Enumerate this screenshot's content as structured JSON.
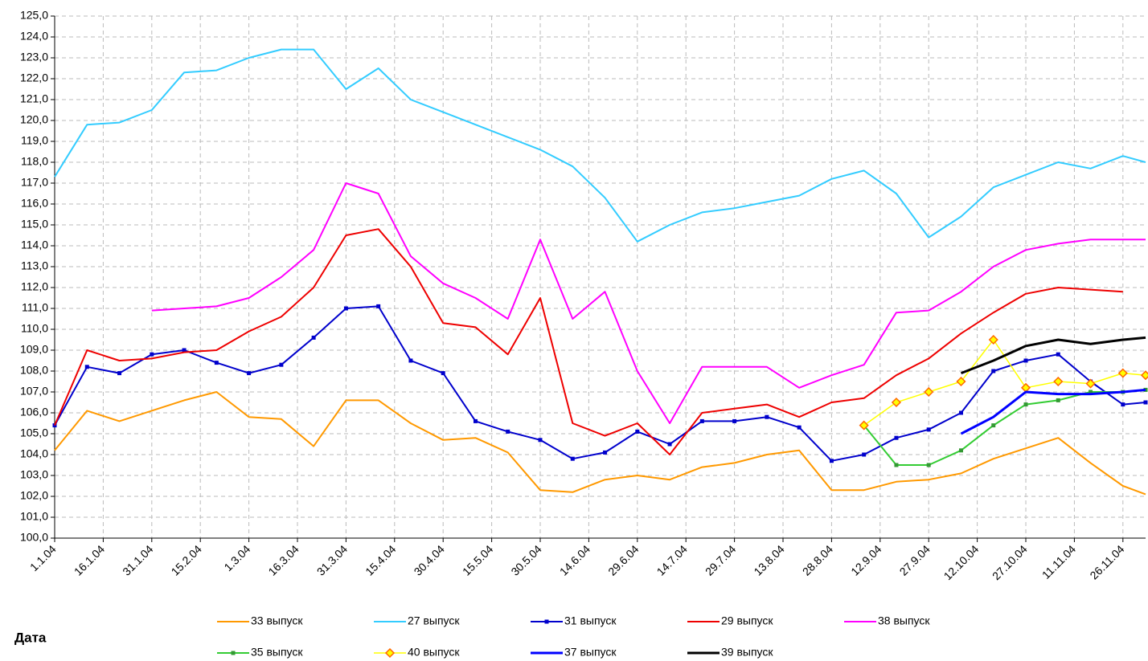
{
  "chart_data": {
    "type": "line",
    "x_label": "Дата",
    "x": [
      "2004-01-01",
      "2004-01-11",
      "2004-01-21",
      "2004-01-31",
      "2004-02-10",
      "2004-02-20",
      "2004-03-01",
      "2004-03-11",
      "2004-03-21",
      "2004-03-31",
      "2004-04-10",
      "2004-04-20",
      "2004-04-30",
      "2004-05-10",
      "2004-05-20",
      "2004-05-30",
      "2004-06-09",
      "2004-06-19",
      "2004-06-29",
      "2004-07-09",
      "2004-07-19",
      "2004-07-29",
      "2004-08-08",
      "2004-08-18",
      "2004-08-28",
      "2004-09-07",
      "2004-09-17",
      "2004-09-27",
      "2004-10-07",
      "2004-10-17",
      "2004-10-27",
      "2004-11-06",
      "2004-11-16",
      "2004-11-26",
      "2004-12-03"
    ],
    "xlim": [
      "2004-01-01",
      "2004-12-03"
    ],
    "xticks": [
      {
        "value": "2004-01-01",
        "label": "1.1.04"
      },
      {
        "value": "2004-01-16",
        "label": "16.1.04"
      },
      {
        "value": "2004-01-31",
        "label": "31.1.04"
      },
      {
        "value": "2004-02-15",
        "label": "15.2.04"
      },
      {
        "value": "2004-03-01",
        "label": "1.3.04"
      },
      {
        "value": "2004-03-16",
        "label": "16.3.04"
      },
      {
        "value": "2004-03-31",
        "label": "31.3.04"
      },
      {
        "value": "2004-04-15",
        "label": "15.4.04"
      },
      {
        "value": "2004-04-30",
        "label": "30.4.04"
      },
      {
        "value": "2004-05-15",
        "label": "15.5.04"
      },
      {
        "value": "2004-05-30",
        "label": "30.5.04"
      },
      {
        "value": "2004-06-14",
        "label": "14.6.04"
      },
      {
        "value": "2004-06-29",
        "label": "29.6.04"
      },
      {
        "value": "2004-07-14",
        "label": "14.7.04"
      },
      {
        "value": "2004-07-29",
        "label": "29.7.04"
      },
      {
        "value": "2004-08-13",
        "label": "13.8.04"
      },
      {
        "value": "2004-08-28",
        "label": "28.8.04"
      },
      {
        "value": "2004-09-12",
        "label": "12.9.04"
      },
      {
        "value": "2004-09-27",
        "label": "27.9.04"
      },
      {
        "value": "2004-10-12",
        "label": "12.10.04"
      },
      {
        "value": "2004-10-27",
        "label": "27.10.04"
      },
      {
        "value": "2004-11-11",
        "label": "11.11.04"
      },
      {
        "value": "2004-11-26",
        "label": "26.11.04"
      }
    ],
    "ylim": [
      100,
      125
    ],
    "yticks": [
      {
        "value": 100,
        "label": "100,0"
      },
      {
        "value": 101,
        "label": "101,0"
      },
      {
        "value": 102,
        "label": "102,0"
      },
      {
        "value": 103,
        "label": "103,0"
      },
      {
        "value": 104,
        "label": "104,0"
      },
      {
        "value": 105,
        "label": "105,0"
      },
      {
        "value": 106,
        "label": "106,0"
      },
      {
        "value": 107,
        "label": "107,0"
      },
      {
        "value": 108,
        "label": "108,0"
      },
      {
        "value": 109,
        "label": "109,0"
      },
      {
        "value": 110,
        "label": "110,0"
      },
      {
        "value": 111,
        "label": "111,0"
      },
      {
        "value": 112,
        "label": "112,0"
      },
      {
        "value": 113,
        "label": "113,0"
      },
      {
        "value": 114,
        "label": "114,0"
      },
      {
        "value": 115,
        "label": "115,0"
      },
      {
        "value": 116,
        "label": "116,0"
      },
      {
        "value": 117,
        "label": "117,0"
      },
      {
        "value": 118,
        "label": "118,0"
      },
      {
        "value": 119,
        "label": "119,0"
      },
      {
        "value": 120,
        "label": "120,0"
      },
      {
        "value": 121,
        "label": "121,0"
      },
      {
        "value": 122,
        "label": "122,0"
      },
      {
        "value": 123,
        "label": "123,0"
      },
      {
        "value": 124,
        "label": "124,0"
      },
      {
        "value": 125,
        "label": "125,0"
      }
    ],
    "grid": true,
    "legend": "bottom",
    "series": [
      {
        "name": "33 выпуск",
        "color": "#ff9900",
        "width": 2,
        "values": [
          104.2,
          106.1,
          105.6,
          106.1,
          106.6,
          107.0,
          105.8,
          105.7,
          104.4,
          106.6,
          106.6,
          105.5,
          104.7,
          104.8,
          104.1,
          102.3,
          102.2,
          102.8,
          103.0,
          102.8,
          103.4,
          103.6,
          104.0,
          104.2,
          102.3,
          102.3,
          102.7,
          102.8,
          103.1,
          103.8,
          104.3,
          104.8,
          103.6,
          102.5,
          102.1
        ]
      },
      {
        "name": "27 выпуск",
        "color": "#33ccff",
        "width": 2,
        "values": [
          117.3,
          119.8,
          119.9,
          120.5,
          122.3,
          122.4,
          123.0,
          123.4,
          123.4,
          121.5,
          122.5,
          121.0,
          120.4,
          119.8,
          119.2,
          118.6,
          117.8,
          116.3,
          114.2,
          115.0,
          115.6,
          115.8,
          116.1,
          116.4,
          117.2,
          117.6,
          116.5,
          114.4,
          115.4,
          116.8,
          117.4,
          118.0,
          117.7,
          118.3,
          118.0
        ]
      },
      {
        "name": "31 выпуск",
        "color": "#0000cc",
        "width": 2,
        "marker": "square",
        "values": [
          105.4,
          108.2,
          107.9,
          108.8,
          109.0,
          108.4,
          107.9,
          108.3,
          109.6,
          111.0,
          111.1,
          108.5,
          107.9,
          105.6,
          105.1,
          104.7,
          103.8,
          104.1,
          105.1,
          104.5,
          105.6,
          105.6,
          105.8,
          105.3,
          103.7,
          104.0,
          104.8,
          105.2,
          106.0,
          108.0,
          108.5,
          108.8,
          107.5,
          106.4,
          106.5
        ]
      },
      {
        "name": "29 выпуск",
        "color": "#ee0000",
        "width": 2,
        "values": [
          105.4,
          109.0,
          108.5,
          108.6,
          108.9,
          109.0,
          109.9,
          110.6,
          112.0,
          114.5,
          114.8,
          113.0,
          110.3,
          110.1,
          108.8,
          111.5,
          105.5,
          104.9,
          105.5,
          104.0,
          106.0,
          106.2,
          106.4,
          105.8,
          106.5,
          106.7,
          107.8,
          108.6,
          109.8,
          110.8,
          111.7,
          112.0,
          111.9,
          111.8,
          null
        ]
      },
      {
        "name": "38 выпуск",
        "color": "#ff00ff",
        "width": 2,
        "values": [
          null,
          null,
          null,
          110.9,
          111.0,
          111.1,
          111.5,
          112.5,
          113.8,
          117.0,
          116.5,
          113.5,
          112.2,
          111.5,
          110.5,
          114.3,
          110.5,
          111.8,
          108.0,
          105.5,
          108.2,
          108.2,
          108.2,
          107.2,
          107.8,
          108.3,
          110.8,
          110.9,
          111.8,
          113.0,
          113.8,
          114.1,
          114.3,
          114.3,
          114.3
        ]
      },
      {
        "name": "35 выпуск",
        "color": "#33cc33",
        "width": 2,
        "marker": "square",
        "marker_color": "#339933",
        "values": [
          null,
          null,
          null,
          null,
          null,
          null,
          null,
          null,
          null,
          null,
          null,
          null,
          null,
          null,
          null,
          null,
          null,
          null,
          null,
          null,
          null,
          null,
          null,
          null,
          null,
          105.4,
          103.5,
          103.5,
          104.2,
          105.4,
          106.4,
          106.6,
          107.0,
          107.0,
          107.1
        ]
      },
      {
        "name": "40 выпуск",
        "color": "#ffff00",
        "width": 1.5,
        "marker": "diamond",
        "marker_color": "#ff6600",
        "values": [
          null,
          null,
          null,
          null,
          null,
          null,
          null,
          null,
          null,
          null,
          null,
          null,
          null,
          null,
          null,
          null,
          null,
          null,
          null,
          null,
          null,
          null,
          null,
          null,
          null,
          105.4,
          106.5,
          107.0,
          107.5,
          109.5,
          107.2,
          107.5,
          107.4,
          107.9,
          107.8
        ]
      },
      {
        "name": "37 выпуск",
        "color": "#0000ff",
        "width": 3,
        "values": [
          null,
          null,
          null,
          null,
          null,
          null,
          null,
          null,
          null,
          null,
          null,
          null,
          null,
          null,
          null,
          null,
          null,
          null,
          null,
          null,
          null,
          null,
          null,
          null,
          null,
          null,
          null,
          null,
          105.0,
          105.8,
          107.0,
          106.9,
          106.9,
          107.0,
          107.1
        ]
      },
      {
        "name": "39 выпуск",
        "color": "#000000",
        "width": 3,
        "values": [
          null,
          null,
          null,
          null,
          null,
          null,
          null,
          null,
          null,
          null,
          null,
          null,
          null,
          null,
          null,
          null,
          null,
          null,
          null,
          null,
          null,
          null,
          null,
          null,
          null,
          null,
          null,
          null,
          107.9,
          108.5,
          109.2,
          109.5,
          109.3,
          109.5,
          109.6
        ]
      }
    ]
  }
}
